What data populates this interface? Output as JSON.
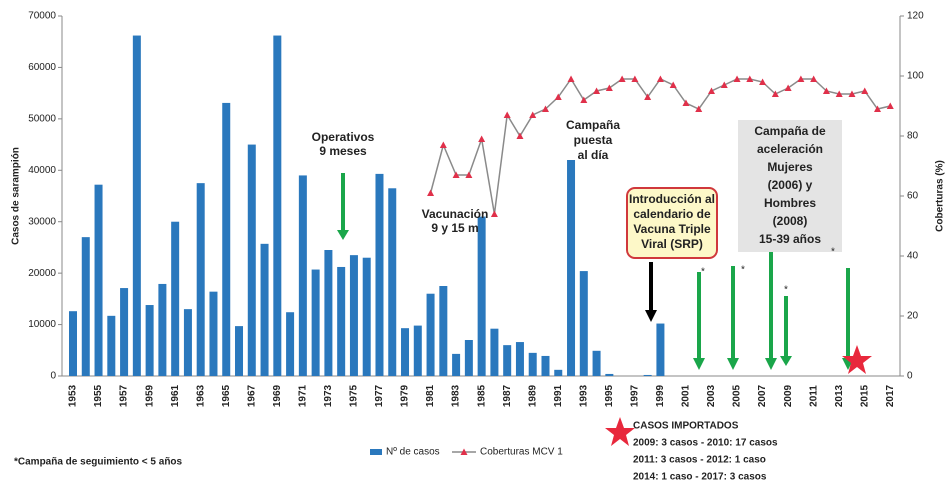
{
  "chart_data": {
    "type": "bar_line",
    "y_label": "Casos de sarampión",
    "y2_label": "Coberturas (%)",
    "categories": [
      "1953",
      null,
      "1955",
      null,
      "1957",
      null,
      "1959",
      null,
      "1961",
      null,
      "1963",
      null,
      "1965",
      null,
      "1967",
      null,
      "1969",
      null,
      "1971",
      null,
      "1973",
      null,
      "1975",
      null,
      "1977",
      null,
      "1979",
      null,
      "1981",
      null,
      "1983",
      null,
      "1985",
      null,
      "1987",
      null,
      "1989",
      null,
      "1991",
      null,
      "1993",
      null,
      "1995",
      null,
      "1997",
      null,
      "1999",
      null,
      "2001",
      null,
      "2003",
      null,
      "2005",
      null,
      "2007",
      null,
      "2009",
      null,
      "2011",
      null,
      "2013",
      null,
      "2015",
      null,
      "2017"
    ],
    "series": [
      {
        "name": "Nº de casos",
        "color": "#2a78bd",
        "kind": "bar",
        "values": [
          12600,
          27000,
          37200,
          11700,
          17100,
          66200,
          13800,
          17900,
          30000,
          13000,
          37500,
          16400,
          53100,
          9700,
          45000,
          25700,
          66200,
          12400,
          39000,
          20700,
          24500,
          21200,
          23500,
          23000,
          39300,
          36500,
          9300,
          9800,
          16000,
          17500,
          4300,
          7000,
          31000,
          9200,
          6000,
          6600,
          4500,
          3900,
          1200,
          42000,
          20400,
          4900,
          400,
          0,
          0,
          200,
          10200,
          0,
          0,
          0,
          0,
          0,
          0,
          0,
          0,
          0,
          0,
          0,
          0,
          0,
          0,
          0,
          0,
          0,
          0
        ]
      },
      {
        "name": "Coberturas MCV 1",
        "color": "#e0304a",
        "line_color": "#8a8a8a",
        "kind": "line",
        "axis": "y2",
        "values": [
          null,
          null,
          null,
          null,
          null,
          null,
          null,
          null,
          null,
          null,
          null,
          null,
          null,
          null,
          null,
          null,
          null,
          null,
          null,
          null,
          null,
          null,
          null,
          null,
          null,
          null,
          null,
          null,
          61,
          77,
          67,
          67,
          79,
          54,
          87,
          80,
          87,
          89,
          93,
          99,
          92,
          95,
          96,
          99,
          99,
          93,
          99,
          97,
          91,
          89,
          95,
          97,
          99,
          99,
          98,
          94,
          96,
          99,
          99,
          95,
          94,
          94,
          95,
          89,
          90
        ]
      }
    ],
    "ylim": [
      0,
      70000
    ],
    "yticks": [
      0,
      10000,
      20000,
      30000,
      40000,
      50000,
      60000,
      70000
    ],
    "y2lim": [
      0,
      120
    ],
    "y2ticks": [
      0,
      20,
      40,
      60,
      80,
      100,
      120
    ],
    "annotations": [
      {
        "lines": [
          "Operativos",
          "9 meses"
        ]
      },
      {
        "lines": [
          "Vacunación",
          "9 y 15 m"
        ]
      },
      {
        "lines": [
          "Campaña",
          "puesta",
          "al día"
        ]
      },
      {
        "lines": [
          "Introducción al",
          "calendario de",
          "Vacuna Triple",
          "Viral  (SRP)"
        ]
      },
      {
        "lines": [
          "Campaña de",
          "aceleración",
          "Mujeres",
          "(2006) y",
          "Hombres",
          "(2008)",
          "15-39 años"
        ]
      }
    ],
    "asterisks": [
      "*",
      "*",
      "*",
      "*"
    ],
    "footnote": "*Campaña de seguimiento < 5 años",
    "imported": [
      "CASOS IMPORTADOS",
      "2009: 3 casos  -  2010: 17 casos",
      "2011: 3 casos  -  2012: 1 caso",
      "2014: 1 caso   -  2017: 3 casos"
    ]
  }
}
